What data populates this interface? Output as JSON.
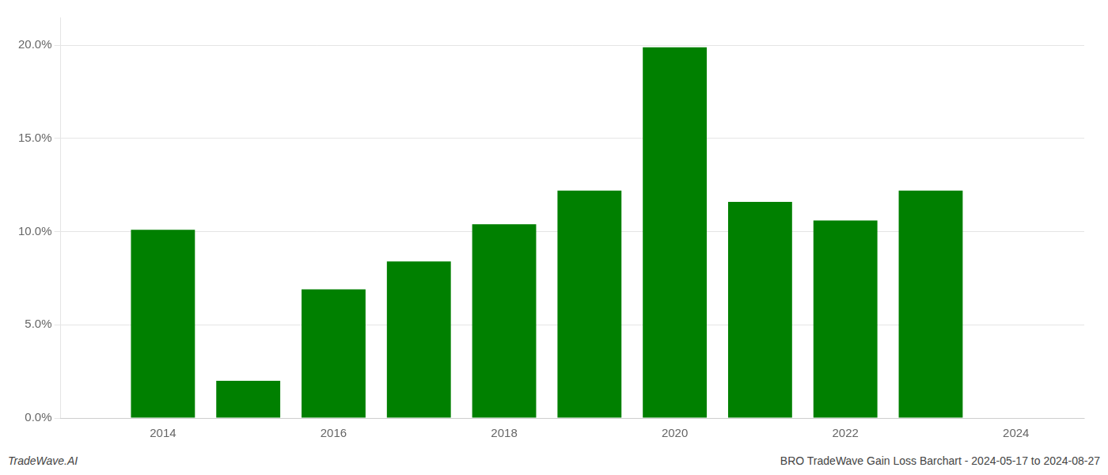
{
  "chart_data": {
    "type": "bar",
    "x": [
      2014,
      2015,
      2016,
      2017,
      2018,
      2019,
      2020,
      2021,
      2022,
      2023
    ],
    "values": [
      0.101,
      0.02,
      0.069,
      0.084,
      0.104,
      0.122,
      0.199,
      0.116,
      0.106,
      0.122
    ],
    "color": "#008000",
    "xlim": [
      2012.8,
      2024.8
    ],
    "xticks": [
      2014,
      2016,
      2018,
      2020,
      2022,
      2024
    ],
    "ylim": [
      0,
      0.215
    ],
    "yticks": [
      {
        "value": 0.0,
        "label": "0.0%"
      },
      {
        "value": 0.05,
        "label": "5.0%"
      },
      {
        "value": 0.1,
        "label": "10.0%"
      },
      {
        "value": 0.15,
        "label": "15.0%"
      },
      {
        "value": 0.2,
        "label": "20.0%"
      }
    ],
    "grid": "y",
    "annotations": [
      "TradeWave.AI",
      "BRO TradeWave Gain Loss Barchart - 2024-05-17 to 2024-08-27"
    ]
  }
}
